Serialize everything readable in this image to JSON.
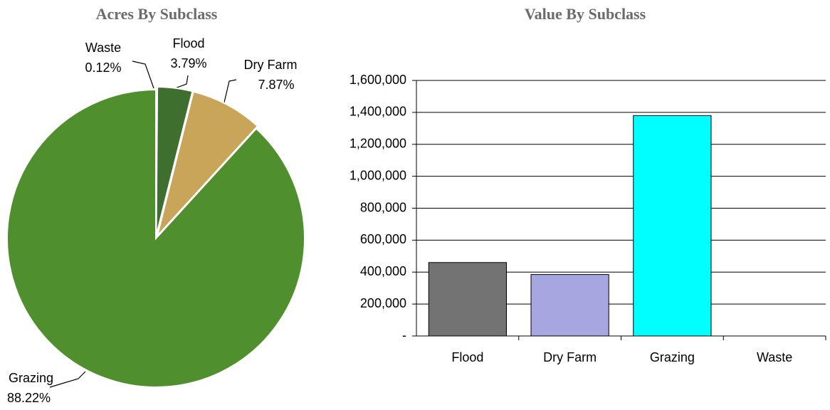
{
  "chart_data": [
    {
      "type": "pie",
      "title": "Acres By Subclass",
      "categories": [
        "Waste",
        "Flood",
        "Dry Farm",
        "Grazing"
      ],
      "values": [
        0.12,
        3.79,
        7.87,
        88.22
      ],
      "value_labels": [
        "0.12%",
        "3.79%",
        "7.87%",
        "88.22%"
      ],
      "colors": [
        "#8a9a70",
        "#3f6f2f",
        "#c9a55a",
        "#4f8f2e"
      ]
    },
    {
      "type": "bar",
      "title": "Value By Subclass",
      "categories": [
        "Flood",
        "Dry Farm",
        "Grazing",
        "Waste"
      ],
      "values": [
        460000,
        385000,
        1380000,
        0
      ],
      "colors": [
        "#737373",
        "#a6a6e0",
        "#00ffff",
        "#ffffff"
      ],
      "ylim": [
        0,
        1600000
      ],
      "yticks": [
        {
          "value": 0,
          "label": "-"
        },
        {
          "value": 200000,
          "label": "200,000"
        },
        {
          "value": 400000,
          "label": "400,000"
        },
        {
          "value": 600000,
          "label": "600,000"
        },
        {
          "value": 800000,
          "label": "800,000"
        },
        {
          "value": 1000000,
          "label": "1,000,000"
        },
        {
          "value": 1200000,
          "label": "1,200,000"
        },
        {
          "value": 1400000,
          "label": "1,400,000"
        },
        {
          "value": 1600000,
          "label": "1,600,000"
        }
      ],
      "grid": true
    }
  ]
}
